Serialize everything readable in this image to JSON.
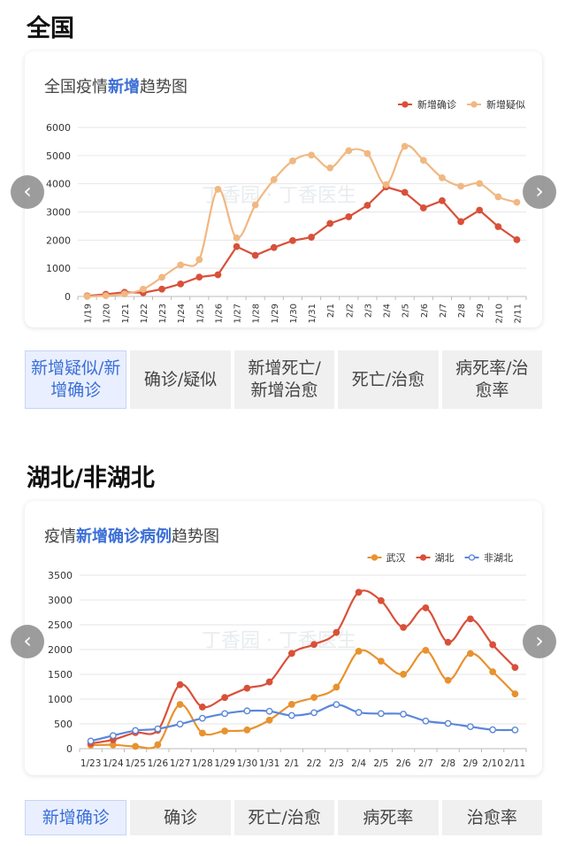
{
  "sections": [
    {
      "title": "全国",
      "chart_title_prefix": "全国疫情",
      "chart_title_highlight": "新增",
      "chart_title_suffix": "趋势图",
      "tabs": [
        {
          "label": "新增疑似/新增确诊",
          "active": true
        },
        {
          "label": "确诊/疑似",
          "active": false
        },
        {
          "label": "新增死亡/新增治愈",
          "active": false
        },
        {
          "label": "死亡/治愈",
          "active": false
        },
        {
          "label": "病死率/治愈率",
          "active": false
        }
      ]
    },
    {
      "title": "湖北/非湖北",
      "chart_title_prefix": "疫情",
      "chart_title_highlight": "新增确诊病例",
      "chart_title_suffix": "趋势图",
      "tabs": [
        {
          "label": "新增确诊",
          "active": true
        },
        {
          "label": "确诊",
          "active": false
        },
        {
          "label": "死亡/治愈",
          "active": false
        },
        {
          "label": "病死率",
          "active": false
        },
        {
          "label": "治愈率",
          "active": false
        }
      ]
    }
  ],
  "watermark": "丁香园 · 丁香医生",
  "nav": {
    "prev_icon": "chevron-left-icon",
    "next_icon": "chevron-right-icon"
  },
  "chart_data": [
    {
      "type": "line",
      "title": "全国疫情新增趋势图",
      "categories": [
        "1/19",
        "1/20",
        "1/21",
        "1/22",
        "1/23",
        "1/24",
        "1/25",
        "1/26",
        "1/27",
        "1/28",
        "1/29",
        "1/30",
        "1/31",
        "2/1",
        "2/2",
        "2/3",
        "2/4",
        "2/5",
        "2/6",
        "2/7",
        "2/8",
        "2/9",
        "2/10",
        "2/11"
      ],
      "ylim": [
        0,
        6000
      ],
      "yticks": [
        0,
        1000,
        2000,
        3000,
        4000,
        5000,
        6000
      ],
      "grid": true,
      "legend": "top-right",
      "series": [
        {
          "name": "新增确诊",
          "color": "#d9503a",
          "marker": "filled",
          "smooth": false,
          "values": [
            20,
            77,
            149,
            131,
            259,
            444,
            688,
            769,
            1771,
            1459,
            1737,
            1982,
            2102,
            2590,
            2829,
            3235,
            3887,
            3694,
            3143,
            3399,
            2656,
            3062,
            2478,
            2015
          ]
        },
        {
          "name": "新增疑似",
          "color": "#f0b882",
          "marker": "filled",
          "smooth": true,
          "values": [
            0,
            27,
            90,
            257,
            680,
            1118,
            1309,
            3806,
            2077,
            3248,
            4148,
            4812,
            5019,
            4562,
            5173,
            5072,
            3971,
            5328,
            4833,
            4214,
            3916,
            4008,
            3536,
            3342
          ]
        }
      ]
    },
    {
      "type": "line",
      "title": "疫情新增确诊病例趋势图",
      "categories": [
        "1/23",
        "1/24",
        "1/25",
        "1/26",
        "1/27",
        "1/28",
        "1/29",
        "1/30",
        "1/31",
        "2/1",
        "2/2",
        "2/3",
        "2/4",
        "2/5",
        "2/6",
        "2/7",
        "2/8",
        "2/9",
        "2/10",
        "2/11"
      ],
      "ylim": [
        0,
        3500
      ],
      "yticks": [
        0,
        500,
        1000,
        1500,
        2000,
        2500,
        3000,
        3500
      ],
      "grid": true,
      "legend": "top-right",
      "series": [
        {
          "name": "武汉",
          "color": "#e8922f",
          "marker": "filled",
          "values": [
            70,
            77,
            46,
            80,
            892,
            315,
            356,
            378,
            576,
            894,
            1033,
            1242,
            1967,
            1766,
            1501,
            1985,
            1379,
            1920,
            1552,
            1104
          ]
        },
        {
          "name": "湖北",
          "color": "#d9503a",
          "marker": "filled",
          "values": [
            105,
            180,
            323,
            371,
            1291,
            840,
            1032,
            1220,
            1347,
            1921,
            2103,
            2345,
            3156,
            2987,
            2447,
            2841,
            2147,
            2618,
            2097,
            1638
          ]
        },
        {
          "name": "非湖北",
          "color": "#5b87d9",
          "marker": "hollow",
          "values": [
            154,
            264,
            365,
            399,
            496,
            614,
            707,
            762,
            755,
            669,
            726,
            890,
            731,
            707,
            696,
            558,
            509,
            444,
            381,
            377
          ]
        }
      ]
    }
  ]
}
